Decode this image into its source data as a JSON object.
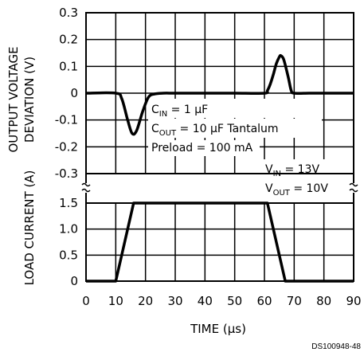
{
  "chart_data": [
    {
      "type": "line",
      "panel": "top",
      "ylabel_line1": "OUTPUT VOLTAGE",
      "ylabel_line2": "DEVIATION (V)",
      "ylim": [
        -0.3,
        0.3
      ],
      "yticks": [
        "0.3",
        "0.2",
        "0.1",
        "0",
        "-0.1",
        "-0.2",
        "-0.3"
      ],
      "grid": true,
      "series": [
        {
          "x": [
            0,
            10,
            12,
            14,
            15.5,
            17,
            19,
            21,
            23,
            26,
            30,
            40,
            50,
            60,
            61,
            62,
            63,
            64,
            65,
            65.5,
            66.5,
            68,
            69,
            70,
            75,
            80,
            90
          ],
          "values": [
            0,
            0,
            -0.02,
            -0.1,
            -0.15,
            -0.14,
            -0.07,
            -0.015,
            -0.003,
            0,
            0,
            0,
            0,
            0,
            0.01,
            0.035,
            0.07,
            0.11,
            0.135,
            0.14,
            0.125,
            0.06,
            0.01,
            0,
            0,
            0,
            0
          ]
        }
      ],
      "annotation": {
        "cin_main": "C",
        "cin_sub": "IN",
        "cin_rest": " = 1 µF",
        "cout_main": "C",
        "cout_sub": "OUT",
        "cout_rest": " = 10 µF Tantalum",
        "preload": "Preload = 100 mA"
      }
    },
    {
      "type": "line",
      "panel": "bottom",
      "ylabel": "LOAD CURRENT (A)",
      "ylim": [
        0,
        1.5
      ],
      "yticks": [
        "1.5",
        "1.0",
        "0.5",
        "0"
      ],
      "xlabel": "TIME (µs)",
      "xlim": [
        0,
        90
      ],
      "xticks": [
        "0",
        "10",
        "20",
        "30",
        "40",
        "50",
        "60",
        "70",
        "80",
        "90"
      ],
      "grid": true,
      "series": [
        {
          "x": [
            0,
            10,
            16,
            61,
            67,
            90
          ],
          "values": [
            0,
            0,
            1.5,
            1.5,
            0,
            0
          ]
        }
      ],
      "annotation": {
        "vin_main": "V",
        "vin_sub": "IN",
        "vin_rest": " = 13V",
        "vout_main": "V",
        "vout_sub": "OUT",
        "vout_rest": " = 10V"
      }
    }
  ],
  "source_label": "DS100948-48"
}
